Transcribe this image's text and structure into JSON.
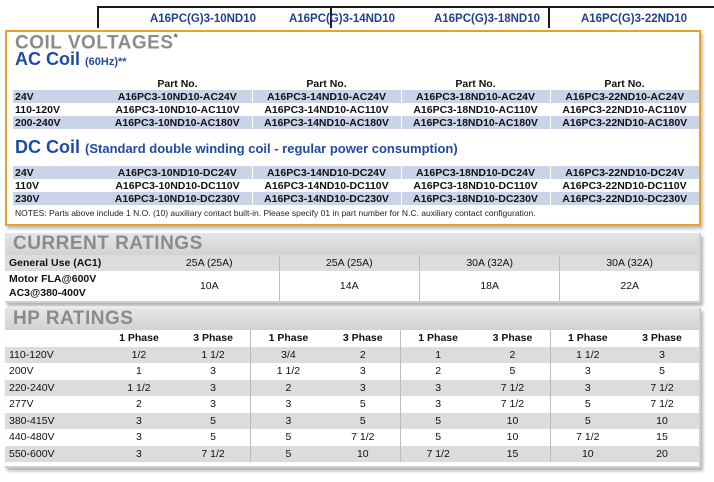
{
  "models": [
    "A16PC(G)3-10ND10",
    "A16PC(G)3-14ND10",
    "A16PC(G)3-18ND10",
    "A16PC(G)3-22ND10"
  ],
  "coil": {
    "title": "COIL VOLTAGES",
    "title_mark": "*",
    "ac_title": "AC Coil",
    "ac_freq": "(60Hz)**",
    "part_no_label": "Part No.",
    "ac_rows": [
      {
        "voltage": "24V",
        "parts": [
          "A16PC3-10ND10-AC24V",
          "A16PC3-14ND10-AC24V",
          "A16PC3-18ND10-AC24V",
          "A16PC3-22ND10-AC24V"
        ]
      },
      {
        "voltage": "110-120V",
        "parts": [
          "A16PC3-10ND10-AC110V",
          "A16PC3-14ND10-AC110V",
          "A16PC3-18ND10-AC110V",
          "A16PC3-22ND10-AC110V"
        ]
      },
      {
        "voltage": "200-240V",
        "parts": [
          "A16PC3-10ND10-AC180V",
          "A16PC3-14ND10-AC180V",
          "A16PC3-18ND10-AC180V",
          "A16PC3-22ND10-AC180V"
        ]
      }
    ],
    "dc_title": "DC Coil",
    "dc_desc": "(Standard double winding coil - regular power consumption)",
    "dc_rows": [
      {
        "voltage": "24V",
        "parts": [
          "A16PC3-10ND10-DC24V",
          "A16PC3-14ND10-DC24V",
          "A16PC3-18ND10-DC24V",
          "A16PC3-22ND10-DC24V"
        ]
      },
      {
        "voltage": "110V",
        "parts": [
          "A16PC3-10ND10-DC110V",
          "A16PC3-14ND10-DC110V",
          "A16PC3-18ND10-DC110V",
          "A16PC3-22ND10-DC110V"
        ]
      },
      {
        "voltage": "230V",
        "parts": [
          "A16PC3-10ND10-DC230V",
          "A16PC3-14ND10-DC230V",
          "A16PC3-18ND10-DC230V",
          "A16PC3-22ND10-DC230V"
        ]
      }
    ],
    "notes": "NOTES: Parts above include 1 N.O. (10) auxiliary contact built-in. Please specify 01 in part number for N.C. auxiliary contact configuration."
  },
  "current": {
    "title": "CURRENT RATINGS",
    "general_label": "General Use (AC1)",
    "general_values": [
      "25A (25A)",
      "25A (25A)",
      "30A (32A)",
      "30A (32A)"
    ],
    "motor_label_1": "Motor FLA@600V",
    "motor_label_2": "AC3@380-400V",
    "motor_values": [
      "10A",
      "14A",
      "18A",
      "22A"
    ]
  },
  "hp": {
    "title": "HP RATINGS",
    "phase1": "1 Phase",
    "phase3": "3 Phase",
    "rows": [
      {
        "voltage": "110-120V",
        "values": [
          "1/2",
          "1 1/2",
          "3/4",
          "2",
          "1",
          "2",
          "1 1/2",
          "3"
        ]
      },
      {
        "voltage": "200V",
        "values": [
          "1",
          "3",
          "1 1/2",
          "3",
          "2",
          "5",
          "3",
          "5"
        ]
      },
      {
        "voltage": "220-240V",
        "values": [
          "1 1/2",
          "3",
          "2",
          "3",
          "3",
          "7 1/2",
          "3",
          "7 1/2"
        ]
      },
      {
        "voltage": "277V",
        "values": [
          "2",
          "3",
          "3",
          "5",
          "3",
          "7 1/2",
          "5",
          "7 1/2"
        ]
      },
      {
        "voltage": "380-415V",
        "values": [
          "3",
          "5",
          "3",
          "5",
          "5",
          "10",
          "5",
          "10"
        ]
      },
      {
        "voltage": "440-480V",
        "values": [
          "3",
          "5",
          "5",
          "7 1/2",
          "5",
          "10",
          "7 1/2",
          "15"
        ]
      },
      {
        "voltage": "550-600V",
        "values": [
          "3",
          "7 1/2",
          "5",
          "10",
          "7 1/2",
          "15",
          "10",
          "20"
        ]
      }
    ]
  }
}
